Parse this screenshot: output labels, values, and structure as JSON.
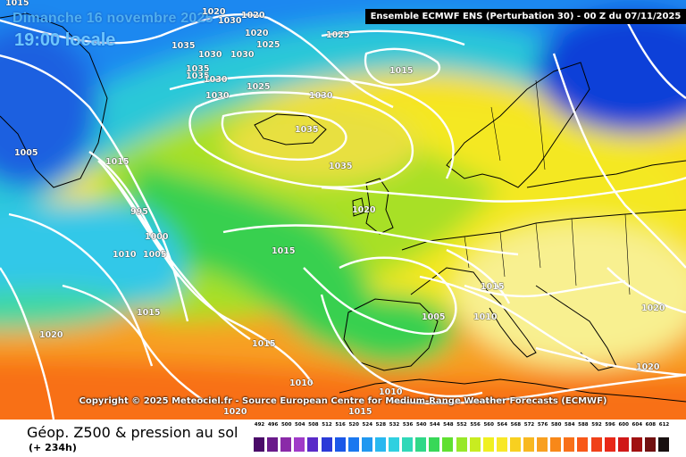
{
  "map": {
    "date_title": "Dimanche 16 novembre 2025",
    "time_title": "19:00 locale",
    "model_banner": "Ensemble ECMWF ENS  (Perturbation 30)  - 00 Z du 07/11/2025",
    "copyright": "Copyright © 2025 Meteociel.fr - Source European Centre for Medium-Range Weather Forecasts (ECMWF)",
    "isobar_labels": [
      "1015",
      "1020",
      "1020",
      "1020",
      "1030",
      "1025",
      "1035",
      "1030",
      "1035",
      "1030",
      "1035",
      "1030",
      "1030",
      "1025",
      "1025",
      "1015",
      "1005",
      "1030",
      "1035",
      "1035",
      "1015",
      "995",
      "1000",
      "1005",
      "1010",
      "1015",
      "1020",
      "1015",
      "1015",
      "1005",
      "1010",
      "1020",
      "1010",
      "1015",
      "1020",
      "1020",
      "1010",
      "1015",
      "1020"
    ],
    "colors": {
      "isobar": "#ffffff",
      "coast": "#000000",
      "deep_blue": "#0a3fd8",
      "blue": "#1a78f0",
      "cyan": "#2ec8f0",
      "teal": "#2cd8a8",
      "green": "#3cd848",
      "yellow_green": "#b8e828",
      "yellow": "#f4e820",
      "light_yellow": "#f8f090",
      "orange": "#f8a020",
      "red_orange": "#f86018"
    }
  },
  "footer": {
    "field_title": "Géop. Z500 & pression au sol",
    "lead_time": "(+ 234h)"
  },
  "legend": {
    "ticks": [
      "492",
      "496",
      "500",
      "504",
      "508",
      "512",
      "516",
      "520",
      "524",
      "528",
      "532",
      "536",
      "540",
      "544",
      "548",
      "552",
      "556",
      "560",
      "564",
      "568",
      "572",
      "576",
      "580",
      "584",
      "588",
      "592",
      "596",
      "600",
      "604",
      "608",
      "612"
    ],
    "colors": [
      "#4a0a68",
      "#6a1a8a",
      "#8a2aa8",
      "#a03ac8",
      "#5a2ac8",
      "#2a3ad8",
      "#1a58e8",
      "#1a78f0",
      "#2098f0",
      "#28b8f0",
      "#30d0e0",
      "#30d8b8",
      "#30d888",
      "#38d858",
      "#60e030",
      "#98e828",
      "#c8ec20",
      "#f0f020",
      "#f8e828",
      "#f8d020",
      "#f8b820",
      "#f8a020",
      "#f88818",
      "#f87018",
      "#f85818",
      "#f04018",
      "#e82818",
      "#d01818",
      "#a01010",
      "#701010",
      "#181010"
    ]
  }
}
